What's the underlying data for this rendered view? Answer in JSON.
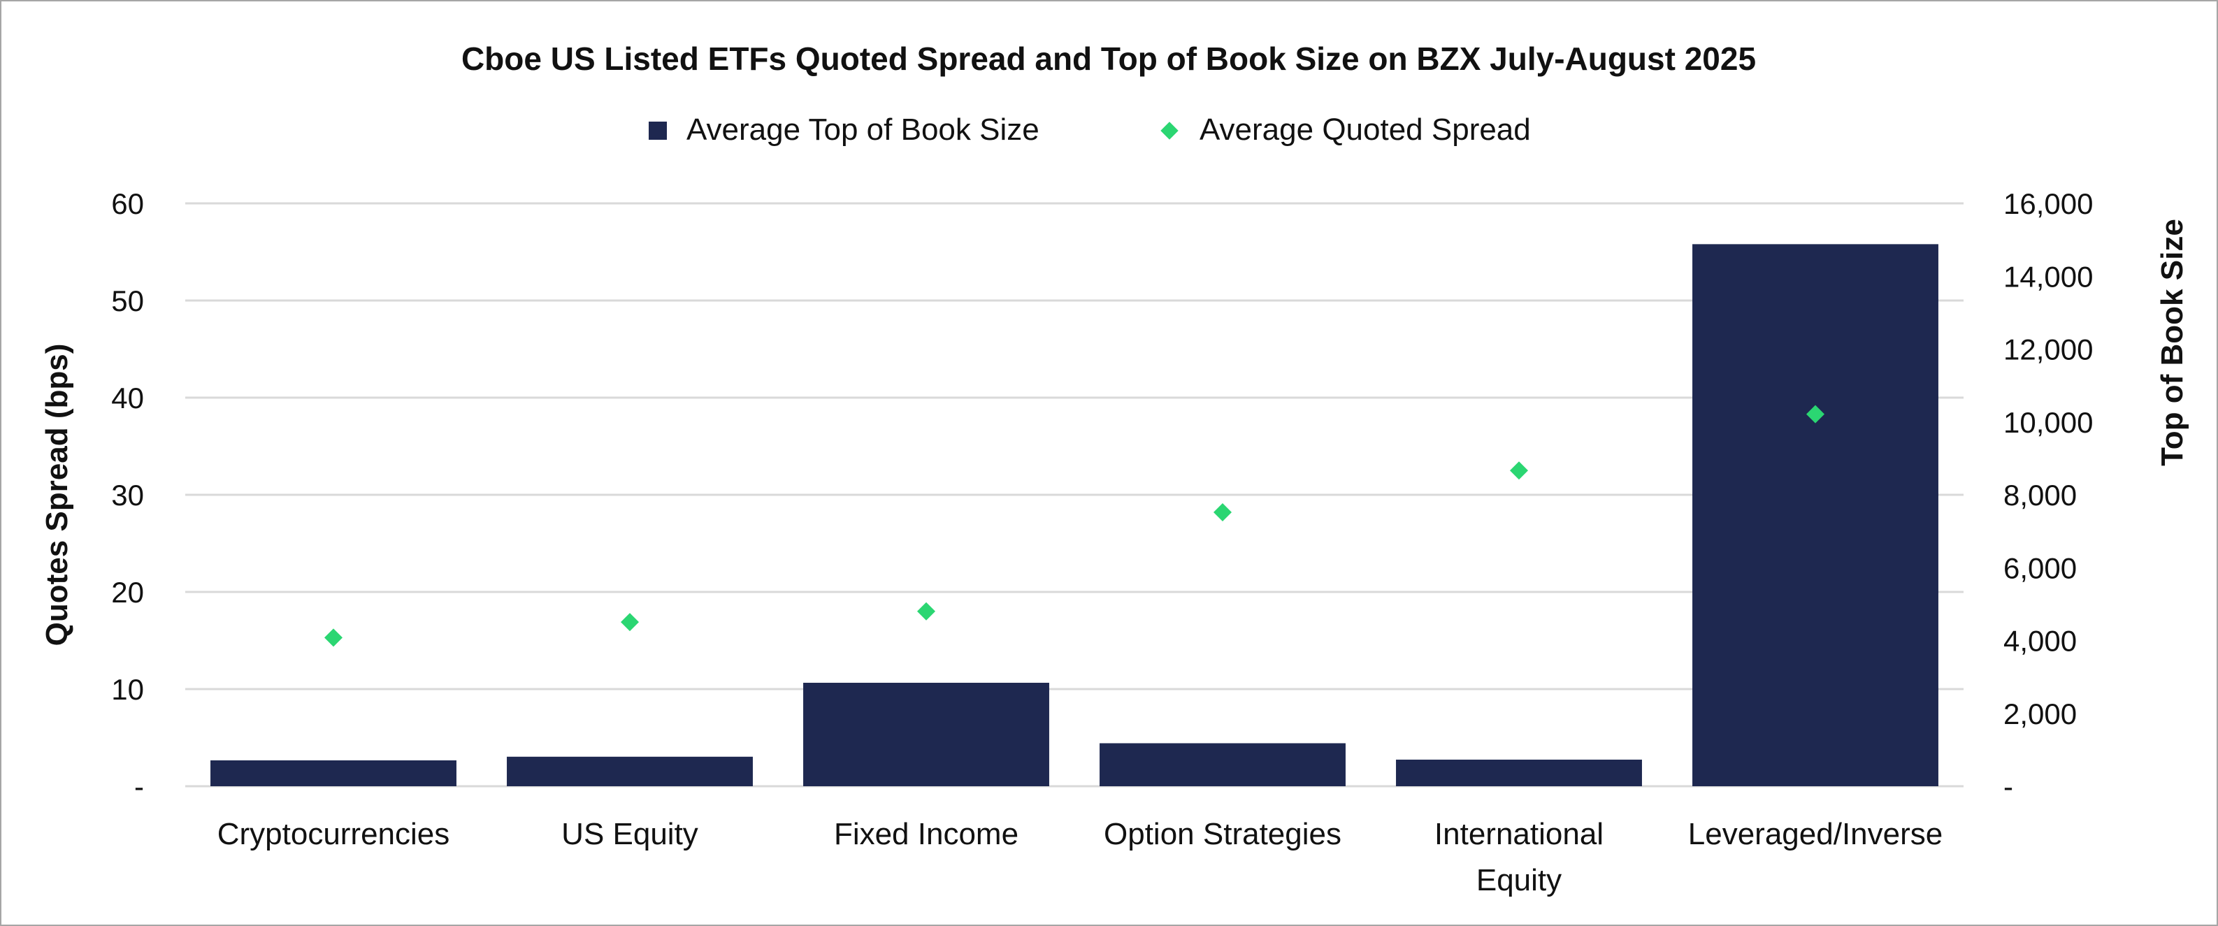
{
  "chart_data": {
    "type": "bar",
    "title": "Cboe US Listed ETFs Quoted Spread and Top of Book Size on BZX July-August 2025",
    "categories": [
      "Cryptocurrencies",
      "US Equity",
      "Fixed Income",
      "Option Strategies",
      "International Equity",
      "Leveraged/Inverse"
    ],
    "category_lines": [
      [
        "Cryptocurrencies"
      ],
      [
        "US Equity"
      ],
      [
        "Fixed Income"
      ],
      [
        "Option Strategies"
      ],
      [
        "International",
        "Equity"
      ],
      [
        "Leveraged/Inverse"
      ]
    ],
    "series": [
      {
        "name": "Average Top of Book Size",
        "type": "bar",
        "axis": "right",
        "color": "#1e2850",
        "values": [
          710,
          810,
          2840,
          1180,
          730,
          14880
        ]
      },
      {
        "name": "Average Quoted Spread",
        "type": "scatter",
        "marker": "diamond",
        "axis": "left",
        "color": "#2bd672",
        "values": [
          15.3,
          16.9,
          18.0,
          28.2,
          32.5,
          38.3
        ]
      }
    ],
    "ylabel": "Quotes Spread (bps)",
    "y2label": "Top of Book Size",
    "ylim": [
      0,
      60
    ],
    "y2lim": [
      0,
      16000
    ],
    "yticks": [
      "-",
      "10",
      "20",
      "30",
      "40",
      "50",
      "60"
    ],
    "y2ticks": [
      "-",
      "2,000",
      "4,000",
      "6,000",
      "8,000",
      "10,000",
      "12,000",
      "14,000",
      "16,000"
    ],
    "grid": true,
    "legend_position": "top-center"
  }
}
